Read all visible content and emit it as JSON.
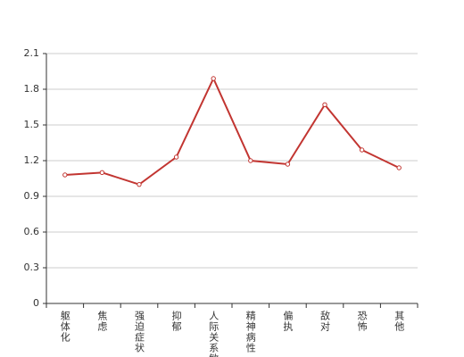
{
  "chart_data": {
    "type": "line",
    "categories": [
      "躯体化",
      "焦虑",
      "强迫症状",
      "抑郁",
      "人际关系敏感",
      "精神病性",
      "偏执",
      "敌对",
      "恐怖",
      "其他"
    ],
    "values": [
      1.08,
      1.1,
      1.0,
      1.23,
      1.89,
      1.2,
      1.17,
      1.67,
      1.29,
      1.14
    ],
    "color": "#c23531",
    "ylim": [
      0,
      2.1
    ],
    "yticks": [
      0,
      0.3,
      0.6,
      0.9,
      1.2,
      1.5,
      1.8,
      2.1
    ],
    "grid": true
  }
}
